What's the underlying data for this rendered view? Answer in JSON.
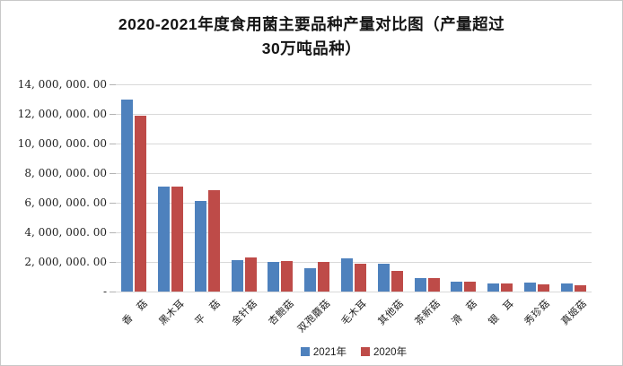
{
  "frame": {
    "border_color": "#c8c8c8",
    "background": "#ffffff"
  },
  "chart_data": {
    "type": "bar",
    "title": "2020-2021年度食用菌主要品种产量对比图（产量超过30万吨品种）",
    "xlabel": "",
    "ylabel": "",
    "ylim": [
      0,
      14000000
    ],
    "y_tick_interval": 2000000,
    "y_tick_labels_top_to_bottom": [
      "14, 000, 000. 00",
      "12, 000, 000. 00",
      "10, 000, 000. 00",
      "8, 000, 000. 00",
      "6, 000, 000. 00",
      "4, 000, 000. 00",
      "2, 000, 000. 00",
      "-"
    ],
    "grid": true,
    "legend_position": "bottom-center",
    "gridline_color": "#d9d9d9",
    "categories": [
      "香　菇",
      "黑木耳",
      "平　菇",
      "金针菇",
      "杏鲍菇",
      "双孢蘑菇",
      "毛木耳",
      "其他菇",
      "茶新菇",
      "滑　菇",
      "银　耳",
      "秀珍菇",
      "真姬菇"
    ],
    "series": [
      {
        "name": "2021年",
        "color": "#4e81bd",
        "values": [
          12950000,
          7080000,
          6100000,
          2140000,
          2000000,
          1570000,
          2220000,
          1850000,
          900000,
          640000,
          520000,
          600000,
          520000
        ]
      },
      {
        "name": "2020年",
        "color": "#be4b48",
        "values": [
          11880000,
          7090000,
          6870000,
          2280000,
          2060000,
          2000000,
          1850000,
          1410000,
          930000,
          660000,
          550000,
          480000,
          430000
        ]
      }
    ]
  }
}
